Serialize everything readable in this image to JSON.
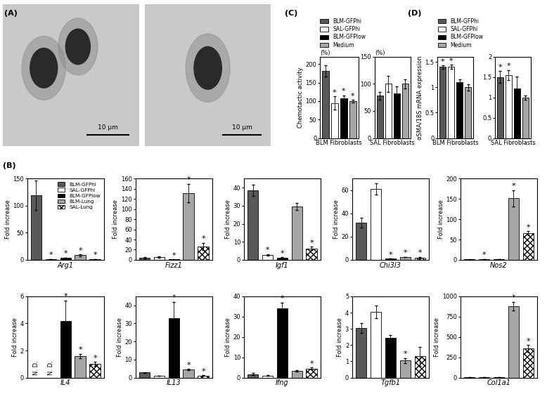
{
  "panel_labels": [
    "(A)",
    "(B)",
    "(C)",
    "(D)"
  ],
  "images": {
    "scale_bars": [
      "10 μm",
      "10 μm"
    ]
  },
  "chart_data": [
    {
      "type": "bar",
      "subtitle": "(%)",
      "ylabel": "Chemotactic activity",
      "xlabel": "BLM Fibroblasts",
      "categories": [
        "BLM-GFPhi",
        "SAL-GFPhi",
        "BLM-GFPlow",
        "Medium"
      ],
      "colors": [
        "#595959",
        "#ffffff",
        "#000000",
        "#a6a6a6"
      ],
      "values": [
        182,
        95,
        108,
        100
      ],
      "errors": [
        15,
        18,
        8,
        3
      ],
      "significance": [
        null,
        "*",
        "*",
        "*"
      ],
      "ylim": [
        0,
        220
      ],
      "yticks": [
        0,
        50,
        100,
        150,
        200
      ],
      "legend": "lower left",
      "tick_labels": "y"
    },
    {
      "type": "bar",
      "subtitle": "(%)",
      "xlabel": "SAL Fibroblasts",
      "categories": [
        "BLM-GFPhi",
        "SAL-GFPhi",
        "BLM-GFPlow",
        "Medium"
      ],
      "colors": [
        "#595959",
        "#ffffff",
        "#000000",
        "#a6a6a6"
      ],
      "values": [
        78,
        100,
        83,
        100
      ],
      "errors": [
        7,
        15,
        12,
        8
      ],
      "ylim": [
        0,
        150
      ],
      "yticks": [
        0,
        50,
        100,
        150
      ],
      "tick_labels": "y"
    },
    {
      "type": "bar",
      "ylabel": "αSMA/18S mRNA expression",
      "xlabel": "BLM Fibroblasts",
      "categories": [
        "BLM-GFPhi",
        "SAL-GFPhi",
        "BLM-GFPlow",
        "Medium"
      ],
      "colors": [
        "#595959",
        "#ffffff",
        "#000000",
        "#a6a6a6"
      ],
      "values": [
        1.4,
        1.4,
        1.1,
        1.0
      ],
      "errors": [
        0.03,
        0.04,
        0.05,
        0.06
      ],
      "significance": [
        "*",
        "*",
        null,
        null
      ],
      "ylim": [
        0,
        1.6
      ],
      "yticks": [
        0,
        0.5,
        1,
        1.5
      ],
      "legend": "lower left",
      "tick_labels": "y"
    },
    {
      "type": "bar",
      "xlabel": "SAL Fibroblasts",
      "categories": [
        "BLM-GFPhi",
        "SAL-GFPhi",
        "BLM-GFPlow",
        "Medium"
      ],
      "colors": [
        "#595959",
        "#ffffff",
        "#000000",
        "#a6a6a6"
      ],
      "values": [
        1.5,
        1.55,
        1.22,
        1.0
      ],
      "errors": [
        0.15,
        0.12,
        0.3,
        0.05
      ],
      "significance": [
        "*",
        "*",
        null,
        null
      ],
      "ylim": [
        0,
        2
      ],
      "yticks": [
        0,
        0.5,
        1,
        1.5,
        2
      ],
      "tick_labels": "y"
    },
    {
      "type": "bar",
      "ylabel": "Fold increase",
      "xlabel": "Arg1",
      "categories": [
        "BLM-GFPhi",
        "SAL-GFPhi",
        "BLM-GFPlow",
        "BLM-Lung",
        "SAL-Lung"
      ],
      "colors": [
        "#595959",
        "#ffffff",
        "#000000",
        "#a6a6a6",
        "#ffffff"
      ],
      "values": [
        119,
        1.0,
        4.0,
        8.5,
        1.6
      ],
      "errors": [
        27,
        0.1,
        0.3,
        1.5,
        0.2
      ],
      "significance": [
        null,
        "*",
        "*",
        "*",
        "*"
      ],
      "ylim": [
        0,
        150
      ],
      "yticks": [
        0,
        50,
        100,
        150
      ],
      "legend": "upper right",
      "tick_labels": "y"
    },
    {
      "type": "bar",
      "ylabel": "Fold increase",
      "xlabel": "Fizz1",
      "categories": [
        "BLM-GFPhi",
        "SAL-GFPhi",
        "BLM-GFPlow",
        "BLM-Lung",
        "SAL-Lung"
      ],
      "colors": [
        "#595959",
        "#ffffff",
        "#000000",
        "#a6a6a6",
        "#ffffff"
      ],
      "values": [
        4,
        6,
        0.8,
        132,
        26
      ],
      "errors": [
        1,
        1.5,
        0.3,
        18,
        7
      ],
      "significance": [
        null,
        null,
        "*",
        "*",
        "*"
      ],
      "ylim": [
        0,
        160
      ],
      "yticks": [
        0,
        20,
        40,
        60,
        80,
        100,
        120,
        140,
        160
      ],
      "tick_labels": "y"
    },
    {
      "type": "bar",
      "ylabel": "Fold increase",
      "xlabel": "Igf1",
      "categories": [
        "BLM-GFPhi",
        "SAL-GFPhi",
        "BLM-GFPlow",
        "BLM-Lung",
        "SAL-Lung"
      ],
      "colors": [
        "#595959",
        "#ffffff",
        "#000000",
        "#a6a6a6",
        "#ffffff"
      ],
      "values": [
        38.5,
        2.8,
        1.1,
        29.5,
        6.3
      ],
      "errors": [
        3,
        0.4,
        0.3,
        2,
        1
      ],
      "significance": [
        null,
        "*",
        "*",
        null,
        "*"
      ],
      "ylim": [
        0,
        45
      ],
      "yticks": [
        0,
        10,
        20,
        30,
        40
      ],
      "tick_labels": "y"
    },
    {
      "type": "bar",
      "ylabel": "Fold increase",
      "xlabel": "Chi3l3",
      "categories": [
        "BLM-GFPhi",
        "SAL-GFPhi",
        "BLM-GFPlow",
        "BLM-Lung",
        "SAL-Lung"
      ],
      "colors": [
        "#595959",
        "#ffffff",
        "#000000",
        "#a6a6a6",
        "#ffffff"
      ],
      "values": [
        32,
        61,
        1.0,
        2.5,
        1.8
      ],
      "errors": [
        4,
        5,
        0.1,
        0.1,
        0.6
      ],
      "significance": [
        null,
        null,
        "*",
        "*",
        "*"
      ],
      "ylim": [
        0,
        70
      ],
      "yticks": [
        0,
        20,
        40,
        60
      ],
      "tick_labels": "y"
    },
    {
      "type": "bar",
      "ylabel": "Fold increase",
      "xlabel": "Nos2",
      "categories": [
        "BLM-GFPhi",
        "SAL-GFPhi",
        "BLM-GFPlow",
        "BLM-Lung",
        "SAL-Lung"
      ],
      "colors": [
        "#595959",
        "#ffffff",
        "#000000",
        "#a6a6a6",
        "#ffffff"
      ],
      "values": [
        1,
        1.8,
        1.7,
        152,
        66
      ],
      "errors": [
        0.3,
        0.2,
        0.15,
        20,
        4
      ],
      "significance": [
        null,
        "*",
        null,
        "*",
        "*"
      ],
      "ylim": [
        0,
        200
      ],
      "yticks": [
        0,
        50,
        100,
        150,
        200
      ],
      "tick_labels": "y"
    },
    {
      "type": "bar",
      "ylabel": "Fold increase",
      "xlabel": "IL4",
      "categories": [
        "BLM-GFPhi",
        "SAL-GFPhi",
        "BLM-GFPlow",
        "BLM-Lung",
        "SAL-Lung"
      ],
      "colors": [
        "#595959",
        "#ffffff",
        "#000000",
        "#a6a6a6",
        "#ffffff"
      ],
      "values": [
        null,
        null,
        4.2,
        1.6,
        1.0
      ],
      "errors": [
        null,
        null,
        1.5,
        0.15,
        0.15
      ],
      "value_labels": [
        "N. D.",
        "N. D.",
        null,
        null,
        null
      ],
      "significance": [
        null,
        null,
        "*",
        "*",
        "*"
      ],
      "ylim": [
        0,
        6
      ],
      "yticks": [
        0,
        2,
        4,
        6
      ],
      "tick_labels": "y"
    },
    {
      "type": "bar",
      "ylabel": "Fold increase",
      "xlabel": "IL13",
      "categories": [
        "BLM-GFPhi",
        "SAL-GFPhi",
        "BLM-GFPlow",
        "BLM-Lung",
        "SAL-Lung"
      ],
      "colors": [
        "#595959",
        "#ffffff",
        "#000000",
        "#a6a6a6",
        "#ffffff"
      ],
      "values": [
        2.8,
        1.0,
        33,
        4.4,
        1.1
      ],
      "errors": [
        0.2,
        0.1,
        9,
        0.4,
        0.15
      ],
      "significance": [
        null,
        null,
        "*",
        "*",
        "*"
      ],
      "ylim": [
        0,
        45
      ],
      "yticks": [
        0,
        10,
        20,
        30,
        40
      ],
      "tick_labels": "y"
    },
    {
      "type": "bar",
      "ylabel": "Fold increase",
      "xlabel": "Ifng",
      "categories": [
        "BLM-GFPhi",
        "SAL-GFPhi",
        "BLM-GFPlow",
        "BLM-Lung",
        "SAL-Lung"
      ],
      "colors": [
        "#595959",
        "#ffffff",
        "#000000",
        "#a6a6a6",
        "#ffffff"
      ],
      "values": [
        1.6,
        1.0,
        34,
        3.3,
        4.5
      ],
      "errors": [
        0.5,
        0.1,
        3,
        0.4,
        0.4
      ],
      "significance": [
        null,
        null,
        "*",
        null,
        "*"
      ],
      "ylim": [
        0,
        40
      ],
      "yticks": [
        0,
        10,
        20,
        30,
        40
      ],
      "tick_labels": "y"
    },
    {
      "type": "bar",
      "ylabel": "Fold increase",
      "xlabel": "Tgfb1",
      "categories": [
        "BLM-GFPhi",
        "SAL-GFPhi",
        "BLM-GFPlow",
        "BLM-Lung",
        "SAL-Lung"
      ],
      "colors": [
        "#595959",
        "#ffffff",
        "#000000",
        "#a6a6a6",
        "#ffffff"
      ],
      "values": [
        3.05,
        4.05,
        2.45,
        1.05,
        1.3
      ],
      "errors": [
        0.3,
        0.4,
        0.15,
        0.15,
        0.6
      ],
      "significance": [
        null,
        null,
        null,
        "*",
        null
      ],
      "ylim": [
        0,
        5
      ],
      "yticks": [
        0,
        1,
        2,
        3,
        4,
        5
      ],
      "tick_labels": "y"
    },
    {
      "type": "bar",
      "ylabel": "Fold increase",
      "xlabel": "Col1a1",
      "categories": [
        "BLM-GFPhi",
        "SAL-GFPhi",
        "BLM-GFPlow",
        "BLM-Lung",
        "SAL-Lung"
      ],
      "colors": [
        "#595959",
        "#ffffff",
        "#000000",
        "#a6a6a6",
        "#ffffff"
      ],
      "values": [
        1.5,
        1.0,
        3.7,
        880,
        360
      ],
      "errors": [
        0.2,
        0.2,
        1.4,
        50,
        40
      ],
      "significance": [
        null,
        null,
        null,
        "*",
        "*"
      ],
      "ylim": [
        0,
        1000
      ],
      "yticks": [
        0,
        250,
        500,
        750,
        1000
      ],
      "tick_labels": "y"
    }
  ]
}
